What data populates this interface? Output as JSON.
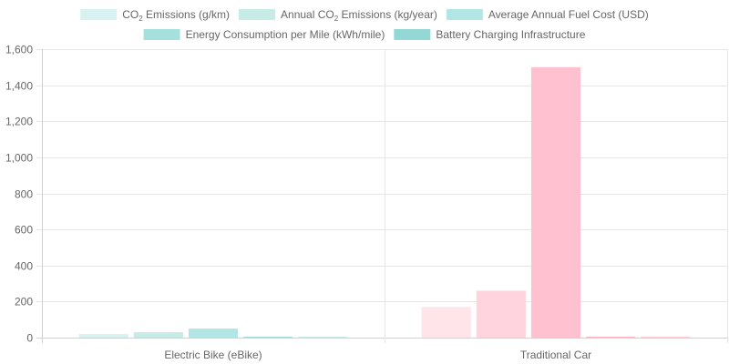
{
  "chart_data": {
    "type": "bar",
    "title": "",
    "xlabel": "",
    "ylabel": "",
    "categories": [
      "Electric Bike (eBike)",
      "Traditional Car"
    ],
    "ylim": [
      0,
      1600
    ],
    "yticks": [
      0,
      200,
      400,
      600,
      800,
      1000,
      1200,
      1400,
      1600
    ],
    "ytick_labels": [
      "0",
      "200",
      "400",
      "600",
      "800",
      "1,000",
      "1,200",
      "1,400",
      "1,600"
    ],
    "grid": true,
    "legend_position": "top",
    "series": [
      {
        "name_parts": [
          "CO",
          "2",
          " Emissions (g/km)"
        ],
        "values": [
          20,
          170
        ],
        "colors": [
          "#d8f2f1",
          "#ffe4ea"
        ]
      },
      {
        "name_parts": [
          "Annual CO",
          "2",
          " Emissions (kg/year)"
        ],
        "values": [
          30,
          260
        ],
        "colors": [
          "#c7ece8",
          "#ffd4de"
        ]
      },
      {
        "name": "Average Annual Fuel Cost (USD)",
        "values": [
          50,
          1500
        ],
        "colors": [
          "#b2e6e4",
          "#ffc1d0"
        ]
      },
      {
        "name": "Energy Consumption per Mile (kWh/mile)",
        "values": [
          0.03,
          0.3
        ],
        "colors": [
          "#a5e0dd",
          "#ffb7c8"
        ]
      },
      {
        "name": "Battery Charging Infrastructure",
        "values": [
          0,
          3
        ],
        "colors": [
          "#93d8d5",
          "#ffccd8"
        ]
      }
    ]
  }
}
